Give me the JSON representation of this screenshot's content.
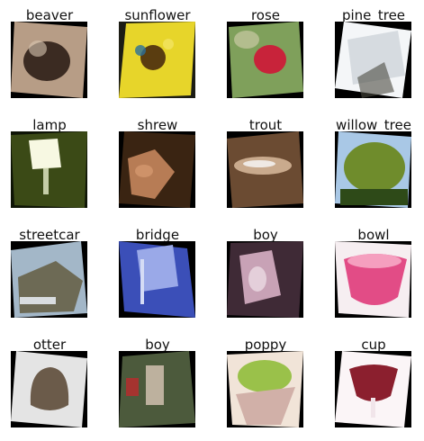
{
  "figure": {
    "tiles": [
      {
        "label": "beaver",
        "colors": {
          "bg": "#000000",
          "main": "#b79d86",
          "accent": "#3b2b22",
          "light": "#d9c6b3"
        }
      },
      {
        "label": "sunflower",
        "colors": {
          "bg": "#1c1c14",
          "main": "#e7d52a",
          "accent": "#2b6f9b",
          "light": "#f3e66a"
        }
      },
      {
        "label": "rose",
        "colors": {
          "bg": "#000000",
          "main": "#7fa05b",
          "accent": "#c8233a",
          "light": "#d6d0b0"
        }
      },
      {
        "label": "pine_tree",
        "colors": {
          "bg": "#000000",
          "main": "#c9d0d6",
          "accent": "#4a4a40",
          "light": "#f4f6f8"
        }
      },
      {
        "label": "lamp",
        "colors": {
          "bg": "#0e1406",
          "main": "#3b4a16",
          "accent": "#e9edcc",
          "light": "#f7f8e2"
        }
      },
      {
        "label": "shrew",
        "colors": {
          "bg": "#000000",
          "main": "#3a2412",
          "accent": "#b77c55",
          "light": "#d79b72"
        }
      },
      {
        "label": "trout",
        "colors": {
          "bg": "#000000",
          "main": "#6b4b32",
          "accent": "#c9aa8d",
          "light": "#efe9e4"
        }
      },
      {
        "label": "willow_tree",
        "colors": {
          "bg": "#000000",
          "main": "#6f8c2c",
          "accent": "#2e4a18",
          "light": "#a9c8e6"
        }
      },
      {
        "label": "streetcar",
        "colors": {
          "bg": "#000000",
          "main": "#6d6a55",
          "accent": "#a3b7c8",
          "light": "#d9dde0"
        }
      },
      {
        "label": "bridge",
        "colors": {
          "bg": "#000000",
          "main": "#3b4fb8",
          "accent": "#9aa9e8",
          "light": "#d5dcf5"
        }
      },
      {
        "label": "boy",
        "colors": {
          "bg": "#000000",
          "main": "#3f2a36",
          "accent": "#c8a2b6",
          "light": "#efe3ea"
        }
      },
      {
        "label": "bowl",
        "colors": {
          "bg": "#000000",
          "main": "#e24c86",
          "accent": "#f59fbf",
          "light": "#f6eef1"
        }
      },
      {
        "label": "otter",
        "colors": {
          "bg": "#000000",
          "main": "#e4e4e4",
          "accent": "#6b5b4a",
          "light": "#f4f4f4"
        }
      },
      {
        "label": "boy",
        "colors": {
          "bg": "#000000",
          "main": "#4c5a3c",
          "accent": "#a5332f",
          "light": "#d9c7b6"
        }
      },
      {
        "label": "poppy",
        "colors": {
          "bg": "#000000",
          "main": "#9ac14a",
          "accent": "#d1b0a8",
          "light": "#f1e4d8"
        }
      },
      {
        "label": "cup",
        "colors": {
          "bg": "#000000",
          "main": "#f1e5ea",
          "accent": "#8b1f2e",
          "light": "#fbf5f7"
        }
      }
    ]
  }
}
